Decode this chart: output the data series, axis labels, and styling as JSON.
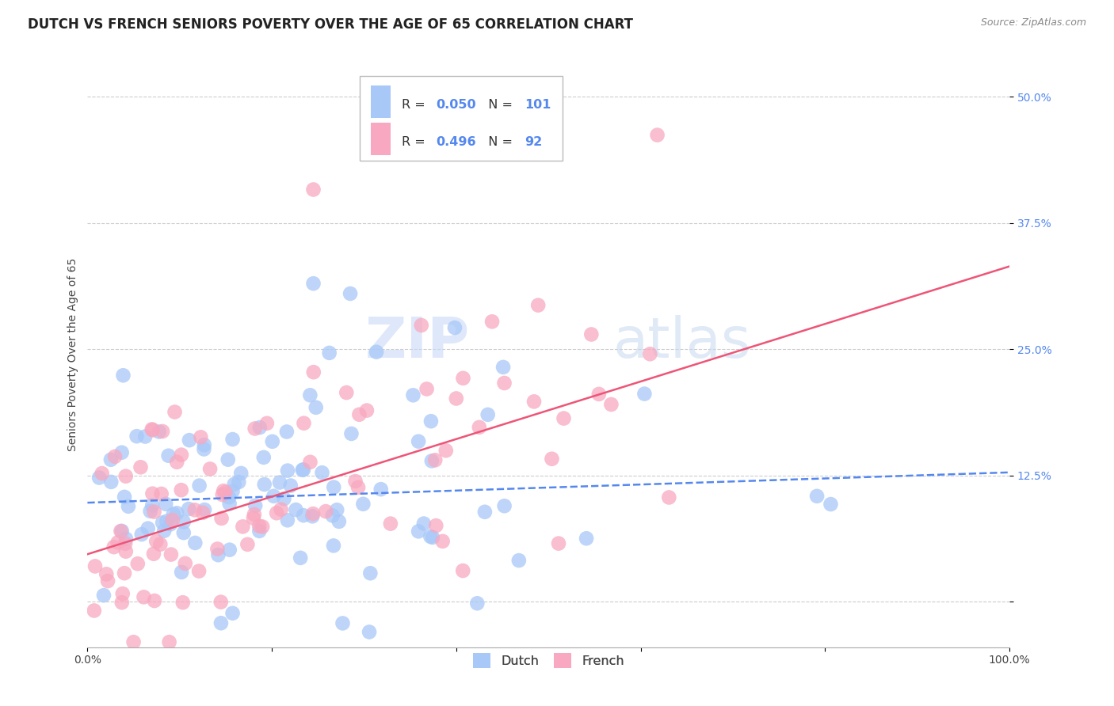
{
  "title": "DUTCH VS FRENCH SENIORS POVERTY OVER THE AGE OF 65 CORRELATION CHART",
  "source": "Source: ZipAtlas.com",
  "ylabel": "Seniors Poverty Over the Age of 65",
  "dutch_R": 0.05,
  "dutch_N": 101,
  "french_R": 0.496,
  "french_N": 92,
  "dutch_color": "#a8c8f8",
  "french_color": "#f8a8c0",
  "trend_dutch_color": "#5588ee",
  "trend_french_color": "#ee5577",
  "label_color": "#5588ee",
  "watermark_zip": "ZIP",
  "watermark_atlas": "atlas",
  "xlim": [
    0.0,
    1.0
  ],
  "ylim": [
    -0.045,
    0.535
  ],
  "ytick_vals": [
    0.0,
    0.125,
    0.25,
    0.375,
    0.5
  ],
  "ytick_labels": [
    "",
    "12.5%",
    "25.0%",
    "37.5%",
    "50.0%"
  ],
  "xtick_vals": [
    0.0,
    0.2,
    0.4,
    0.6,
    0.8,
    1.0
  ],
  "xtick_labels": [
    "0.0%",
    "",
    "",
    "",
    "",
    "100.0%"
  ],
  "background_color": "#ffffff",
  "grid_color": "#cccccc",
  "title_fontsize": 12,
  "axis_label_fontsize": 10,
  "tick_fontsize": 10,
  "dutch_trend_start_y": 0.098,
  "dutch_trend_end_y": 0.128,
  "french_trend_start_y": 0.047,
  "french_trend_end_y": 0.332
}
